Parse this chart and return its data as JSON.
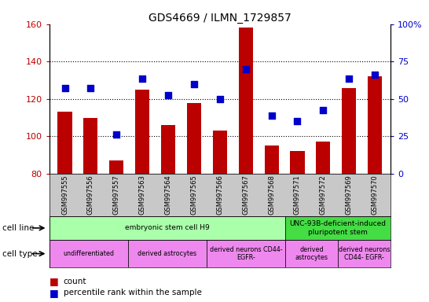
{
  "title": "GDS4669 / ILMN_1729857",
  "samples": [
    "GSM997555",
    "GSM997556",
    "GSM997557",
    "GSM997563",
    "GSM997564",
    "GSM997565",
    "GSM997566",
    "GSM997567",
    "GSM997568",
    "GSM997571",
    "GSM997572",
    "GSM997569",
    "GSM997570"
  ],
  "counts": [
    113,
    110,
    87,
    125,
    106,
    118,
    103,
    158,
    95,
    92,
    97,
    126,
    132
  ],
  "percentiles": [
    126,
    126,
    101,
    131,
    122,
    128,
    120,
    136,
    111,
    108,
    114,
    131,
    133
  ],
  "ylim": [
    80,
    160
  ],
  "bar_color": "#bb0000",
  "dot_color": "#0000cc",
  "left_yticks": [
    80,
    100,
    120,
    140,
    160
  ],
  "right_ytick_positions": [
    80,
    100,
    120,
    140,
    160
  ],
  "right_yticklabels": [
    "0",
    "25",
    "50",
    "75",
    "100%"
  ],
  "grid_yticks": [
    100,
    120,
    140
  ],
  "cell_line_groups": [
    {
      "label": "embryonic stem cell H9",
      "start": 0,
      "end": 9,
      "color": "#aaffaa"
    },
    {
      "label": "UNC-93B-deficient-induced\npluripotent stem",
      "start": 9,
      "end": 13,
      "color": "#44dd44"
    }
  ],
  "cell_type_groups": [
    {
      "label": "undifferentiated",
      "start": 0,
      "end": 3,
      "color": "#ee88ee"
    },
    {
      "label": "derived astrocytes",
      "start": 3,
      "end": 6,
      "color": "#ee88ee"
    },
    {
      "label": "derived neurons CD44-\nEGFR-",
      "start": 6,
      "end": 9,
      "color": "#ee88ee"
    },
    {
      "label": "derived\nastrocytes",
      "start": 9,
      "end": 11,
      "color": "#ee88ee"
    },
    {
      "label": "derived neurons\nCD44- EGFR-",
      "start": 11,
      "end": 13,
      "color": "#ee88ee"
    }
  ]
}
